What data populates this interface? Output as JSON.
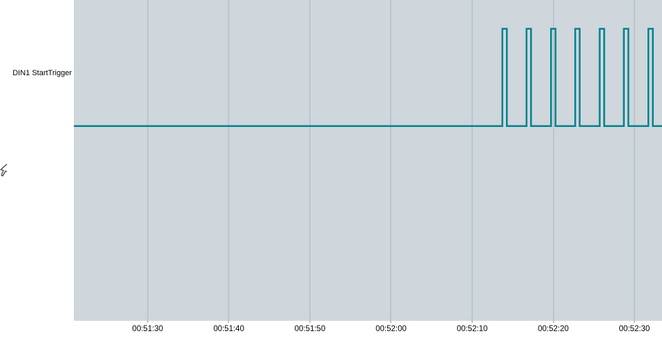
{
  "channel": {
    "label": "DIN1 StartTrigger"
  },
  "icons": {
    "cursor": "mouse-pointer-partially-clipped"
  },
  "colors": {
    "page_background": "#ffffff",
    "plot_background": "#cfd6dc",
    "gridline": "#b9c6cd",
    "signal": "#00828e",
    "text": "#000000",
    "cursor_stroke": "#3c4148"
  },
  "chart_data": {
    "type": "line",
    "subtype": "digital_pulse_train",
    "title": "",
    "xlabel": "",
    "ylabel": "",
    "grid": "vertical-only",
    "legend": "none",
    "series": [
      {
        "name": "DIN1 StartTrigger",
        "low_value": 0,
        "high_value": 1,
        "pulse_start_times": [
          "00:52:13.7",
          "00:52:16.7",
          "00:52:19.7",
          "00:52:22.7",
          "00:52:25.7",
          "00:52:28.7",
          "00:52:31.7"
        ],
        "pulse_start_seconds": [
          3133.7,
          3136.7,
          3139.7,
          3142.7,
          3145.7,
          3148.7,
          3151.7
        ],
        "pulse_width_seconds": 0.55,
        "pulse_period_seconds": 3.0,
        "pulse_count": 7
      }
    ],
    "x_axis": {
      "tick_labels": [
        "00:51:30",
        "00:51:40",
        "00:51:50",
        "00:52:00",
        "00:52:10",
        "00:52:20",
        "00:52:30"
      ],
      "tick_seconds": [
        3090,
        3100,
        3110,
        3120,
        3130,
        3140,
        3150
      ],
      "range_seconds": [
        3080.9,
        3153.4
      ],
      "range_labels": [
        "00:51:21",
        "00:52:33"
      ]
    }
  }
}
